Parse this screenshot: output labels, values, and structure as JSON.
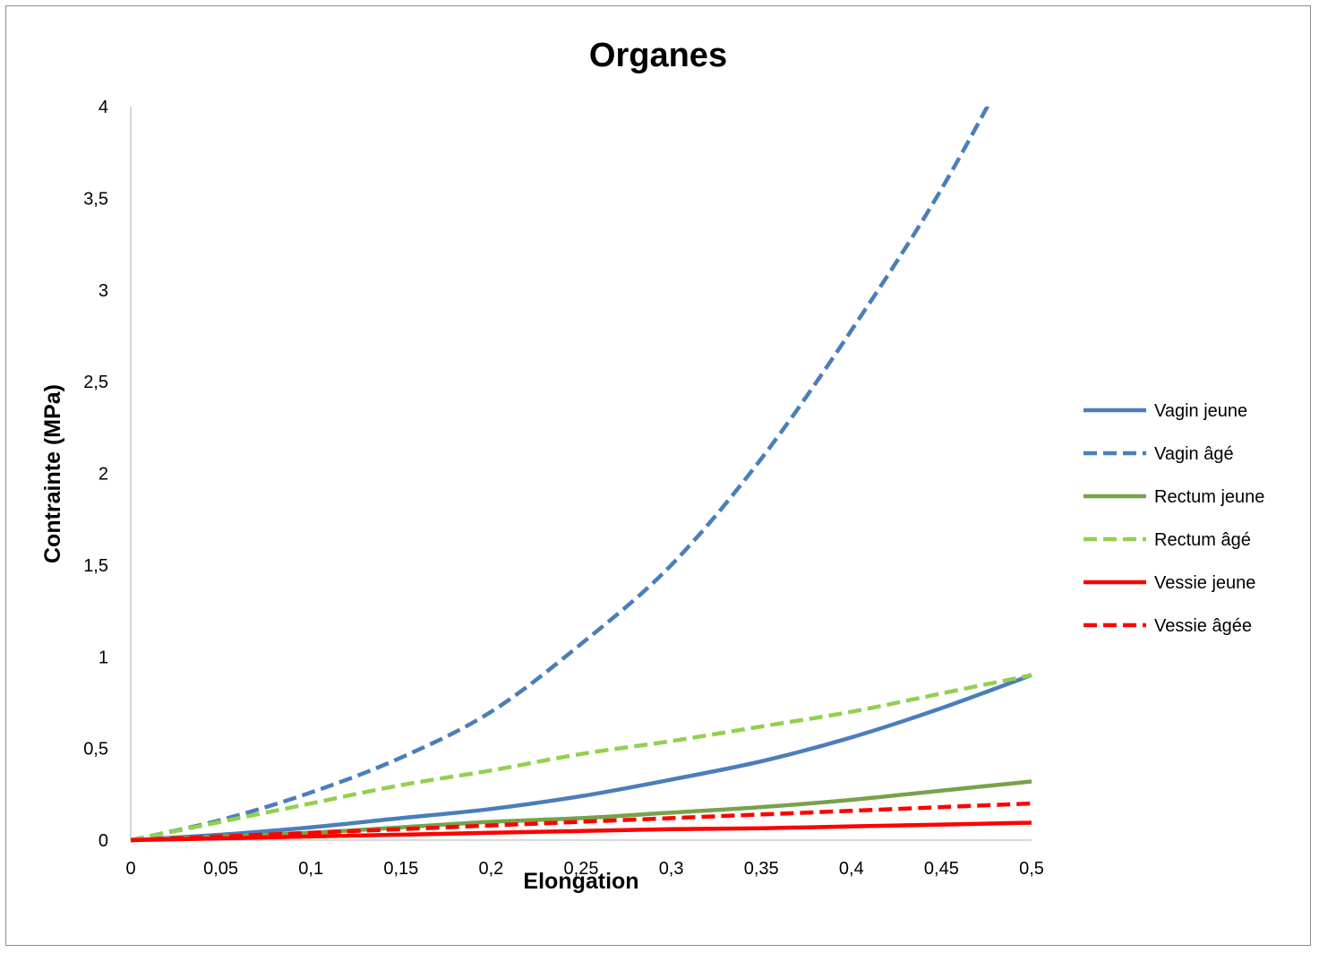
{
  "chart_data": {
    "type": "line",
    "title": "Organes",
    "xlabel": "Elongation",
    "ylabel": "Contrainte (MPa)",
    "xlim": [
      0,
      0.5
    ],
    "ylim": [
      0,
      4
    ],
    "x_ticks": [
      "0",
      "0,05",
      "0,1",
      "0,15",
      "0,2",
      "0,25",
      "0,3",
      "0,35",
      "0,4",
      "0,45",
      "0,5"
    ],
    "y_ticks": [
      "0",
      "0,5",
      "1",
      "1,5",
      "2",
      "2,5",
      "3",
      "3,5",
      "4"
    ],
    "grid": false,
    "legend_position": "right",
    "x": [
      0,
      0.05,
      0.1,
      0.15,
      0.2,
      0.25,
      0.3,
      0.35,
      0.4,
      0.45,
      0.5
    ],
    "series": [
      {
        "name": "Vagin jeune",
        "color": "#4a7ebb",
        "dash": false,
        "values": [
          0,
          0.03,
          0.07,
          0.12,
          0.17,
          0.24,
          0.33,
          0.43,
          0.56,
          0.72,
          0.9
        ]
      },
      {
        "name": "Vagin âgé",
        "color": "#4a7ebb",
        "dash": true,
        "values": [
          0,
          0.11,
          0.26,
          0.45,
          0.7,
          1.07,
          1.5,
          2.08,
          2.78,
          3.55,
          4.45
        ]
      },
      {
        "name": "Rectum jeune",
        "color": "#77a24a",
        "dash": false,
        "values": [
          0,
          0.02,
          0.04,
          0.07,
          0.1,
          0.12,
          0.15,
          0.18,
          0.22,
          0.27,
          0.32
        ]
      },
      {
        "name": "Rectum âgé",
        "color": "#92d050",
        "dash": true,
        "values": [
          0,
          0.1,
          0.2,
          0.3,
          0.38,
          0.47,
          0.54,
          0.62,
          0.7,
          0.8,
          0.9
        ]
      },
      {
        "name": "Vessie jeune",
        "color": "#ff0000",
        "dash": false,
        "values": [
          0,
          0.01,
          0.02,
          0.03,
          0.04,
          0.05,
          0.06,
          0.065,
          0.075,
          0.085,
          0.095
        ]
      },
      {
        "name": "Vessie âgée",
        "color": "#ff0000",
        "dash": true,
        "values": [
          0,
          0.02,
          0.04,
          0.06,
          0.08,
          0.1,
          0.12,
          0.14,
          0.16,
          0.18,
          0.2
        ]
      }
    ]
  }
}
